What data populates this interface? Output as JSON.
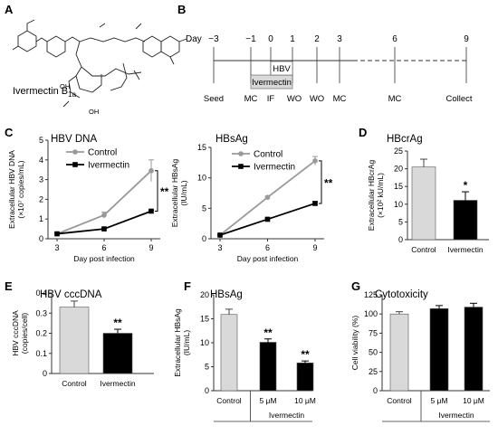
{
  "panel_labels": {
    "A": "A",
    "B": "B",
    "C": "C",
    "D": "D",
    "E": "E",
    "F": "F",
    "G": "G"
  },
  "panel_a": {
    "compound": "Ivermectin B",
    "subscript": "1a",
    "oh1": "OH",
    "oh2": "OH"
  },
  "panel_b": {
    "day_label": "Day",
    "days": [
      "−3",
      "−1",
      "0",
      "1",
      "2",
      "3",
      "6",
      "9"
    ],
    "hbv_box": "HBV",
    "ivermectin_box": "Ivermectin",
    "events": [
      "Seed",
      "MC",
      "IF",
      "WO",
      "WO",
      "MC",
      "MC",
      "Collect"
    ],
    "colors": {
      "treatment_box": "#d9d9d9"
    }
  },
  "colors": {
    "control": "#999999",
    "ivermectin": "#000000",
    "control_bar": "#d9d9d9",
    "ivermectin_bar": "#000000"
  },
  "chart_data": [
    {
      "id": "C1",
      "type": "line",
      "title": "HBV DNA",
      "xlabel": "Day post infection",
      "ylabel_lines": [
        "Extracellular HBV DNA",
        "(×10⁷ copies/mL)"
      ],
      "x": [
        3,
        6,
        9
      ],
      "ylim": [
        0,
        5
      ],
      "yticks": [
        "0",
        "1",
        "2",
        "3",
        "4",
        "5"
      ],
      "series": [
        {
          "name": "Control",
          "values": [
            0.25,
            1.2,
            3.45
          ],
          "errors": [
            0.05,
            0.15,
            0.55
          ]
        },
        {
          "name": "Ivermectin",
          "values": [
            0.25,
            0.5,
            1.4
          ],
          "errors": [
            0.03,
            0.05,
            0.05
          ]
        }
      ],
      "significance": "**"
    },
    {
      "id": "C2",
      "type": "line",
      "title": "HBsAg",
      "xlabel": "Day post infection",
      "ylabel_lines": [
        "Extracellular HBsAg",
        "(IU/mL)"
      ],
      "x": [
        3,
        6,
        9
      ],
      "ylim": [
        0,
        15
      ],
      "yticks": [
        "0",
        "5",
        "10",
        "15"
      ],
      "series": [
        {
          "name": "Control",
          "values": [
            0.6,
            6.8,
            12.8
          ],
          "errors": [
            0.1,
            0.2,
            0.7
          ]
        },
        {
          "name": "Ivermectin",
          "values": [
            0.6,
            3.2,
            5.8
          ],
          "errors": [
            0.05,
            0.15,
            0.3
          ]
        }
      ],
      "significance": "**"
    },
    {
      "id": "D",
      "type": "bar",
      "title": "HBcrAg",
      "ylabel_lines": [
        "Extracellular HBcrAg",
        "(×10² kU/mL)"
      ],
      "categories": [
        "Control",
        "Ivermectin"
      ],
      "values": [
        20.5,
        11.1
      ],
      "errors": [
        2.2,
        2.4
      ],
      "ylim": [
        0,
        25
      ],
      "yticks": [
        "0",
        "5",
        "10",
        "15",
        "20",
        "25"
      ],
      "significance": [
        "",
        "*"
      ]
    },
    {
      "id": "E",
      "type": "bar",
      "title": "HBV cccDNA",
      "ylabel_lines": [
        "HBV cccDNA",
        "(copies/cell)"
      ],
      "categories": [
        "Control",
        "Ivermectin"
      ],
      "values": [
        0.33,
        0.2
      ],
      "errors": [
        0.03,
        0.02
      ],
      "ylim": [
        0,
        0.4
      ],
      "yticks": [
        "0",
        "0.1",
        "0.2",
        "0.3",
        "0.4"
      ],
      "significance": [
        "",
        "**"
      ]
    },
    {
      "id": "F",
      "type": "bar",
      "title": "HBsAg",
      "ylabel_lines": [
        "Extracellular HBsAg",
        "(IU/mL)"
      ],
      "categories": [
        "Control",
        "5 μM",
        "10 μM"
      ],
      "values": [
        15.9,
        10.1,
        5.8
      ],
      "errors": [
        1.1,
        0.7,
        0.4
      ],
      "ylim": [
        0,
        20
      ],
      "yticks": [
        "0",
        "5",
        "10",
        "15",
        "20"
      ],
      "significance": [
        "",
        "**",
        "**"
      ],
      "group_label": "Ivermectin"
    },
    {
      "id": "G",
      "type": "bar",
      "title": "Cytotoxicity",
      "ylabel_lines": [
        "Cell viability (%)"
      ],
      "categories": [
        "Control",
        "5 μM",
        "10 μM"
      ],
      "values": [
        100,
        107,
        109
      ],
      "errors": [
        3,
        4,
        5
      ],
      "ylim": [
        0,
        125
      ],
      "yticks": [
        "0",
        "25",
        "50",
        "75",
        "100",
        "125"
      ],
      "significance": [
        "",
        "",
        ""
      ],
      "group_label": "Ivermectin"
    }
  ]
}
